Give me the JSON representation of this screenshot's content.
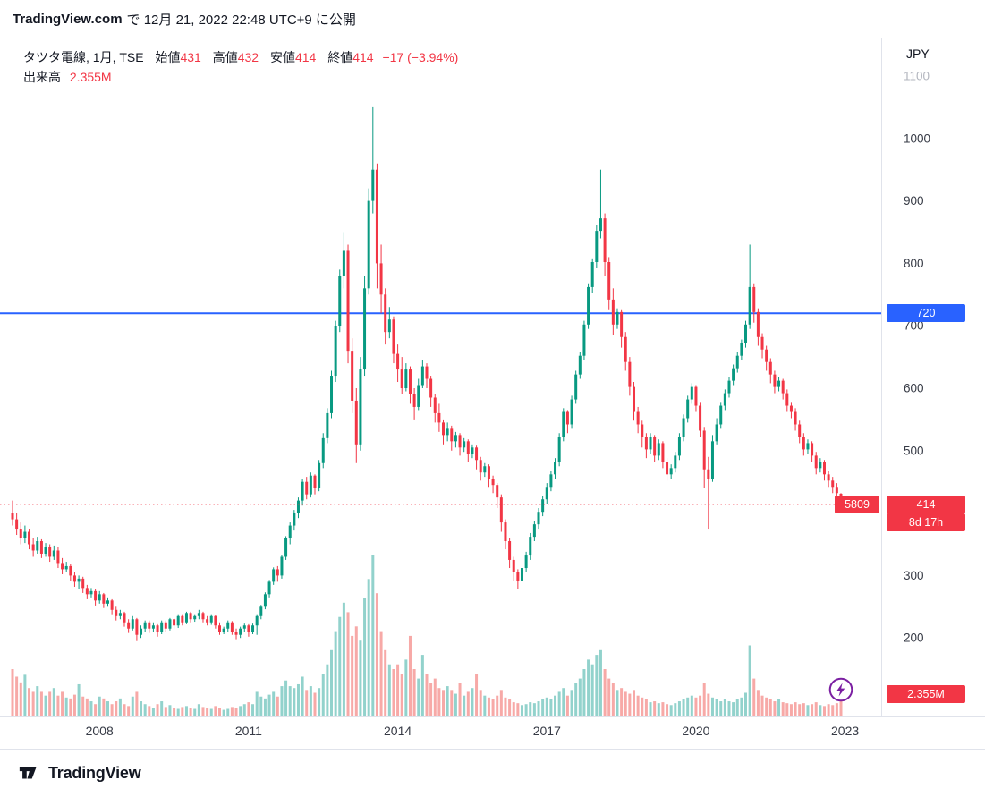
{
  "header": {
    "brand": "TradingView.com",
    "publish_text": "で 12月 21, 2022 22:48 UTC+9 に公開"
  },
  "legend": {
    "title": "タツタ電線, 1月, TSE",
    "open_label": "始値",
    "open": "431",
    "high_label": "高値",
    "high": "432",
    "low_label": "安値",
    "low": "414",
    "close_label": "終値",
    "close": "414",
    "change": "−17 (−3.94%)",
    "volume_label": "出来高",
    "volume": "2.355M"
  },
  "axis": {
    "currency": "JPY",
    "price_ticks": [
      {
        "label": "1100",
        "value": 1100,
        "muted": true
      },
      {
        "label": "1000",
        "value": 1000
      },
      {
        "label": "900",
        "value": 900
      },
      {
        "label": "800",
        "value": 800
      },
      {
        "label": "700",
        "value": 700
      },
      {
        "label": "600",
        "value": 600
      },
      {
        "label": "500",
        "value": 500
      },
      {
        "label": "300",
        "value": 300
      },
      {
        "label": "200",
        "value": 200
      }
    ],
    "time_ticks": [
      "2008",
      "2011",
      "2014",
      "2017",
      "2020",
      "2023"
    ],
    "level_badge": "720",
    "symbol_badge": "5809",
    "price_badge": "414",
    "countdown_badge": "8d 17h",
    "volume_badge": "2.355M"
  },
  "footer": {
    "brand": "TradingView"
  },
  "colors": {
    "up": "#089981",
    "down": "#f23645",
    "volume_up": "rgba(38,166,154,0.5)",
    "volume_down": "rgba(239,83,80,0.5)",
    "level_line": "#2962ff",
    "price_line": "#f23645",
    "axis_text": "#363a45",
    "badge_red": "#f23645",
    "badge_blue": "#2962ff",
    "lightning_purple": "#7b1fa2"
  },
  "chart_data": {
    "type": "candlestick+volume",
    "title": "タツタ電線, 1月, TSE (5809)",
    "symbol": "5809",
    "interval": "1M",
    "x_start": "2006-04",
    "x_interval_months": 1,
    "ylabel": "JPY",
    "price_range_visible": [
      74,
      1160
    ],
    "horizontal_line": 720,
    "last_price_line": 414,
    "last_volume_label": "2.355M",
    "candles": [
      [
        400,
        420,
        380,
        390
      ],
      [
        390,
        400,
        365,
        375
      ],
      [
        375,
        385,
        350,
        360
      ],
      [
        360,
        380,
        352,
        370
      ],
      [
        370,
        375,
        342,
        350
      ],
      [
        350,
        360,
        330,
        340
      ],
      [
        340,
        362,
        335,
        355
      ],
      [
        355,
        358,
        328,
        335
      ],
      [
        335,
        352,
        330,
        345
      ],
      [
        345,
        350,
        322,
        330
      ],
      [
        330,
        348,
        325,
        340
      ],
      [
        340,
        345,
        312,
        320
      ],
      [
        320,
        328,
        302,
        310
      ],
      [
        310,
        322,
        305,
        315
      ],
      [
        315,
        318,
        292,
        300
      ],
      [
        300,
        305,
        282,
        290
      ],
      [
        290,
        300,
        278,
        295
      ],
      [
        295,
        298,
        272,
        280
      ],
      [
        280,
        285,
        262,
        270
      ],
      [
        270,
        280,
        265,
        275
      ],
      [
        275,
        278,
        252,
        260
      ],
      [
        260,
        275,
        255,
        270
      ],
      [
        270,
        272,
        248,
        255
      ],
      [
        255,
        265,
        250,
        260
      ],
      [
        260,
        262,
        238,
        245
      ],
      [
        245,
        250,
        228,
        235
      ],
      [
        235,
        245,
        230,
        240
      ],
      [
        240,
        242,
        218,
        225
      ],
      [
        225,
        230,
        208,
        215
      ],
      [
        215,
        235,
        212,
        230
      ],
      [
        230,
        232,
        195,
        205
      ],
      [
        205,
        220,
        200,
        215
      ],
      [
        215,
        228,
        210,
        225
      ],
      [
        225,
        228,
        208,
        215
      ],
      [
        215,
        225,
        210,
        220
      ],
      [
        220,
        222,
        202,
        210
      ],
      [
        210,
        228,
        206,
        225
      ],
      [
        225,
        228,
        210,
        215
      ],
      [
        215,
        232,
        212,
        230
      ],
      [
        230,
        232,
        215,
        220
      ],
      [
        220,
        238,
        216,
        235
      ],
      [
        235,
        238,
        220,
        225
      ],
      [
        225,
        242,
        222,
        240
      ],
      [
        240,
        242,
        225,
        230
      ],
      [
        230,
        238,
        226,
        235
      ],
      [
        235,
        245,
        230,
        240
      ],
      [
        240,
        242,
        225,
        230
      ],
      [
        230,
        235,
        220,
        225
      ],
      [
        225,
        238,
        221,
        235
      ],
      [
        235,
        237,
        215,
        220
      ],
      [
        220,
        225,
        205,
        210
      ],
      [
        210,
        218,
        206,
        215
      ],
      [
        215,
        228,
        210,
        225
      ],
      [
        225,
        227,
        205,
        210
      ],
      [
        210,
        215,
        198,
        205
      ],
      [
        205,
        218,
        200,
        215
      ],
      [
        215,
        223,
        210,
        220
      ],
      [
        220,
        222,
        202,
        210
      ],
      [
        210,
        223,
        206,
        220
      ],
      [
        220,
        238,
        205,
        235
      ],
      [
        235,
        253,
        230,
        250
      ],
      [
        250,
        273,
        246,
        270
      ],
      [
        270,
        293,
        265,
        290
      ],
      [
        290,
        313,
        285,
        310
      ],
      [
        310,
        315,
        290,
        300
      ],
      [
        300,
        333,
        295,
        330
      ],
      [
        330,
        363,
        325,
        360
      ],
      [
        360,
        385,
        350,
        380
      ],
      [
        380,
        405,
        372,
        400
      ],
      [
        400,
        425,
        392,
        420
      ],
      [
        420,
        455,
        412,
        450
      ],
      [
        450,
        458,
        422,
        430
      ],
      [
        430,
        465,
        425,
        460
      ],
      [
        460,
        462,
        430,
        440
      ],
      [
        440,
        485,
        435,
        480
      ],
      [
        480,
        528,
        472,
        520
      ],
      [
        520,
        568,
        512,
        560
      ],
      [
        560,
        628,
        552,
        620
      ],
      [
        620,
        708,
        610,
        700
      ],
      [
        700,
        790,
        690,
        780
      ],
      [
        780,
        850,
        760,
        820
      ],
      [
        820,
        830,
        640,
        660
      ],
      [
        660,
        680,
        560,
        580
      ],
      [
        580,
        600,
        480,
        510
      ],
      [
        510,
        650,
        500,
        630
      ],
      [
        630,
        780,
        620,
        760
      ],
      [
        760,
        920,
        750,
        900
      ],
      [
        900,
        1050,
        880,
        950
      ],
      [
        950,
        960,
        760,
        800
      ],
      [
        800,
        830,
        720,
        750
      ],
      [
        750,
        760,
        670,
        690
      ],
      [
        690,
        730,
        680,
        710
      ],
      [
        710,
        715,
        640,
        655
      ],
      [
        655,
        670,
        610,
        630
      ],
      [
        630,
        650,
        590,
        600
      ],
      [
        600,
        640,
        595,
        630
      ],
      [
        630,
        635,
        575,
        590
      ],
      [
        590,
        600,
        550,
        570
      ],
      [
        570,
        615,
        565,
        605
      ],
      [
        605,
        645,
        600,
        635
      ],
      [
        635,
        640,
        600,
        615
      ],
      [
        615,
        620,
        570,
        585
      ],
      [
        585,
        590,
        545,
        560
      ],
      [
        560,
        575,
        530,
        545
      ],
      [
        545,
        550,
        510,
        525
      ],
      [
        525,
        545,
        515,
        535
      ],
      [
        535,
        540,
        500,
        515
      ],
      [
        515,
        530,
        505,
        525
      ],
      [
        525,
        528,
        492,
        505
      ],
      [
        505,
        520,
        498,
        515
      ],
      [
        515,
        518,
        482,
        495
      ],
      [
        495,
        510,
        488,
        505
      ],
      [
        505,
        508,
        470,
        485
      ],
      [
        485,
        490,
        452,
        465
      ],
      [
        465,
        480,
        458,
        475
      ],
      [
        475,
        478,
        442,
        455
      ],
      [
        455,
        460,
        432,
        445
      ],
      [
        445,
        448,
        408,
        425
      ],
      [
        425,
        430,
        370,
        385
      ],
      [
        385,
        390,
        342,
        355
      ],
      [
        355,
        360,
        312,
        325
      ],
      [
        325,
        330,
        292,
        305
      ],
      [
        305,
        310,
        278,
        292
      ],
      [
        292,
        318,
        285,
        312
      ],
      [
        312,
        338,
        305,
        332
      ],
      [
        332,
        368,
        325,
        362
      ],
      [
        362,
        388,
        355,
        382
      ],
      [
        382,
        408,
        375,
        402
      ],
      [
        402,
        428,
        395,
        422
      ],
      [
        422,
        448,
        415,
        442
      ],
      [
        442,
        468,
        435,
        462
      ],
      [
        462,
        488,
        455,
        482
      ],
      [
        482,
        528,
        475,
        522
      ],
      [
        522,
        568,
        515,
        562
      ],
      [
        562,
        565,
        528,
        542
      ],
      [
        542,
        588,
        535,
        582
      ],
      [
        582,
        628,
        575,
        622
      ],
      [
        622,
        658,
        615,
        652
      ],
      [
        652,
        708,
        645,
        702
      ],
      [
        702,
        768,
        695,
        762
      ],
      [
        762,
        808,
        752,
        802
      ],
      [
        802,
        862,
        792,
        852
      ],
      [
        852,
        950,
        840,
        872
      ],
      [
        872,
        880,
        780,
        802
      ],
      [
        802,
        810,
        725,
        742
      ],
      [
        742,
        760,
        685,
        702
      ],
      [
        702,
        728,
        695,
        722
      ],
      [
        722,
        725,
        665,
        682
      ],
      [
        682,
        690,
        628,
        642
      ],
      [
        642,
        650,
        588,
        602
      ],
      [
        602,
        610,
        548,
        562
      ],
      [
        562,
        570,
        528,
        542
      ],
      [
        542,
        548,
        505,
        522
      ],
      [
        522,
        528,
        488,
        502
      ],
      [
        502,
        528,
        495,
        522
      ],
      [
        522,
        525,
        482,
        492
      ],
      [
        492,
        518,
        485,
        512
      ],
      [
        512,
        515,
        472,
        482
      ],
      [
        482,
        488,
        452,
        462
      ],
      [
        462,
        478,
        455,
        472
      ],
      [
        472,
        498,
        465,
        492
      ],
      [
        492,
        528,
        485,
        522
      ],
      [
        522,
        558,
        515,
        552
      ],
      [
        552,
        588,
        545,
        582
      ],
      [
        582,
        608,
        575,
        602
      ],
      [
        602,
        605,
        562,
        572
      ],
      [
        572,
        578,
        522,
        532
      ],
      [
        532,
        538,
        440,
        470
      ],
      [
        470,
        490,
        375,
        455
      ],
      [
        455,
        525,
        450,
        515
      ],
      [
        515,
        552,
        510,
        542
      ],
      [
        542,
        578,
        535,
        572
      ],
      [
        572,
        598,
        565,
        592
      ],
      [
        592,
        618,
        585,
        612
      ],
      [
        612,
        638,
        605,
        632
      ],
      [
        632,
        658,
        625,
        652
      ],
      [
        652,
        678,
        645,
        672
      ],
      [
        672,
        708,
        665,
        702
      ],
      [
        702,
        830,
        695,
        762
      ],
      [
        762,
        768,
        705,
        722
      ],
      [
        722,
        728,
        668,
        682
      ],
      [
        682,
        688,
        648,
        662
      ],
      [
        662,
        668,
        628,
        642
      ],
      [
        642,
        648,
        608,
        622
      ],
      [
        622,
        628,
        592,
        602
      ],
      [
        602,
        618,
        595,
        612
      ],
      [
        612,
        615,
        582,
        592
      ],
      [
        592,
        598,
        562,
        572
      ],
      [
        572,
        578,
        552,
        562
      ],
      [
        562,
        568,
        532,
        542
      ],
      [
        542,
        548,
        512,
        522
      ],
      [
        522,
        528,
        492,
        502
      ],
      [
        502,
        518,
        495,
        512
      ],
      [
        512,
        515,
        482,
        492
      ],
      [
        492,
        498,
        462,
        472
      ],
      [
        472,
        488,
        465,
        482
      ],
      [
        482,
        485,
        452,
        462
      ],
      [
        462,
        468,
        442,
        452
      ],
      [
        452,
        458,
        432,
        442
      ],
      [
        442,
        448,
        422,
        432
      ],
      [
        431,
        432,
        414,
        414
      ]
    ],
    "volumes_m": [
      5.0,
      4.2,
      3.6,
      4.4,
      3.0,
      2.6,
      3.2,
      2.6,
      2.2,
      2.6,
      3.0,
      2.2,
      2.6,
      2.0,
      1.9,
      2.3,
      3.4,
      2.1,
      1.9,
      1.6,
      1.3,
      2.1,
      1.9,
      1.6,
      1.3,
      1.6,
      1.9,
      1.3,
      1.1,
      2.1,
      2.6,
      1.6,
      1.3,
      1.1,
      0.9,
      1.3,
      1.6,
      1.0,
      1.2,
      0.9,
      0.8,
      1.0,
      1.1,
      0.9,
      0.8,
      1.3,
      1.0,
      0.9,
      0.8,
      1.1,
      0.9,
      0.7,
      0.8,
      1.0,
      0.9,
      1.1,
      1.3,
      1.5,
      1.3,
      2.6,
      2.1,
      1.9,
      2.3,
      2.6,
      2.1,
      3.2,
      3.8,
      3.2,
      3.0,
      3.4,
      4.2,
      2.8,
      3.2,
      2.5,
      3.0,
      4.5,
      5.5,
      7.0,
      9.0,
      10.5,
      12.0,
      11.0,
      8.5,
      9.5,
      8.0,
      12.5,
      14.5,
      17.0,
      13.0,
      9.0,
      7.0,
      5.5,
      5.0,
      5.5,
      4.5,
      6.0,
      8.5,
      5.0,
      4.0,
      6.5,
      4.5,
      3.5,
      4.0,
      3.0,
      2.8,
      3.2,
      2.8,
      2.4,
      3.5,
      2.2,
      2.6,
      3.0,
      4.5,
      2.8,
      2.2,
      2.0,
      1.8,
      2.2,
      2.8,
      2.0,
      1.8,
      1.5,
      1.4,
      1.2,
      1.3,
      1.5,
      1.4,
      1.6,
      1.8,
      2.0,
      1.8,
      2.2,
      2.6,
      3.0,
      2.2,
      2.8,
      3.5,
      4.0,
      5.0,
      6.0,
      5.5,
      6.5,
      7.0,
      5.0,
      4.0,
      3.5,
      2.8,
      3.0,
      2.6,
      2.4,
      2.8,
      2.2,
      2.0,
      1.8,
      1.5,
      1.6,
      1.4,
      1.5,
      1.3,
      1.2,
      1.4,
      1.6,
      1.8,
      2.0,
      2.2,
      2.0,
      2.2,
      3.5,
      2.4,
      2.0,
      1.8,
      1.6,
      1.8,
      1.6,
      1.5,
      1.8,
      2.0,
      2.5,
      7.5,
      4.0,
      2.8,
      2.2,
      2.0,
      1.8,
      1.6,
      1.8,
      1.5,
      1.4,
      1.3,
      1.5,
      1.3,
      1.4,
      1.2,
      1.3,
      1.5,
      1.2,
      1.1,
      1.3,
      1.2,
      1.4,
      2.355
    ]
  }
}
